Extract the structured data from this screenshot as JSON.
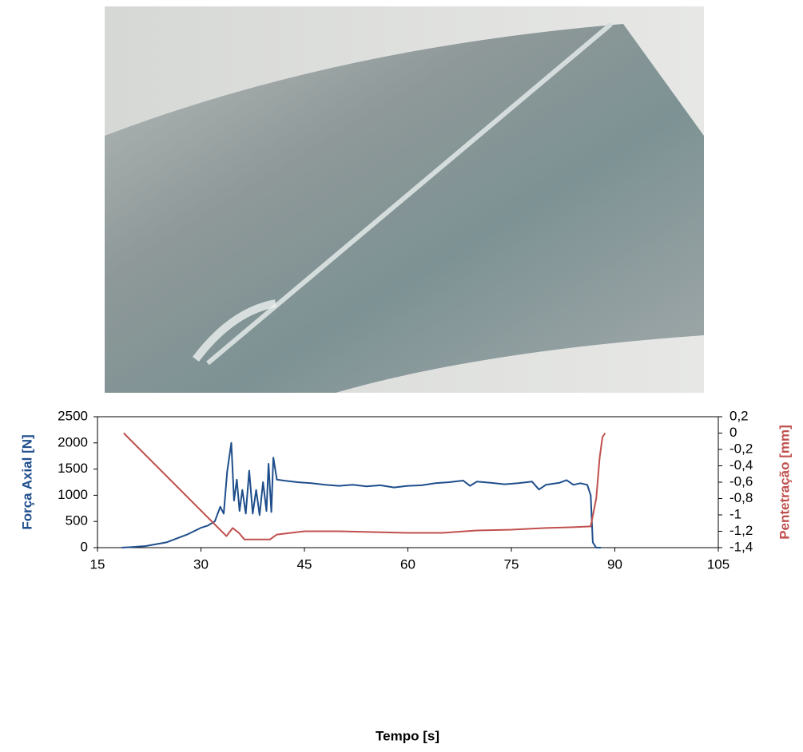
{
  "chart_data": {
    "type": "line",
    "xlabel": "Tempo [s]",
    "ylabel": "Força Axial [N]",
    "y2label": "Pentetração [mm]",
    "xlim": [
      15,
      105
    ],
    "xticks": [
      15,
      30,
      45,
      60,
      75,
      90,
      105
    ],
    "ylim": [
      0,
      2500
    ],
    "yticks": [
      0,
      500,
      1000,
      1500,
      2000,
      2500
    ],
    "y2lim": [
      -1.4,
      0.2
    ],
    "y2ticks": [
      {
        "value": -1.4,
        "label": "-1,4"
      },
      {
        "value": -1.2,
        "label": "-1,2"
      },
      -1,
      {
        "value": -0.8,
        "label": "-0,8"
      },
      {
        "value": -0.6,
        "label": "-0,6"
      },
      {
        "value": -0.4,
        "label": "-0,4"
      },
      {
        "value": -0.2,
        "label": "-0,2"
      },
      0,
      {
        "value": 0.2,
        "label": "0,2"
      }
    ],
    "series": [
      {
        "name": "Força Axial",
        "color": "#1f4e8c",
        "axis": "y",
        "x": [
          18.5,
          20,
          22,
          25,
          28,
          30,
          31,
          32,
          32.8,
          33.3,
          33.8,
          34.4,
          34.8,
          35.2,
          35.6,
          36,
          36.5,
          37,
          37.5,
          38,
          38.5,
          39,
          39.5,
          39.8,
          40.2,
          40.5,
          41,
          42,
          44,
          46,
          48,
          50,
          52,
          54,
          56,
          58,
          60,
          62,
          64,
          66,
          68,
          69,
          70,
          72,
          74,
          76,
          78,
          79,
          80,
          82,
          83,
          84,
          85,
          86,
          86.5,
          86.8,
          87.3,
          88
        ],
        "values": [
          0,
          10,
          30,
          100,
          250,
          380,
          420,
          500,
          780,
          650,
          1450,
          2000,
          900,
          1300,
          700,
          1100,
          650,
          1470,
          650,
          1100,
          620,
          1250,
          700,
          1600,
          680,
          1720,
          1300,
          1280,
          1250,
          1230,
          1200,
          1180,
          1200,
          1170,
          1190,
          1150,
          1180,
          1190,
          1230,
          1250,
          1280,
          1180,
          1260,
          1240,
          1210,
          1230,
          1260,
          1110,
          1200,
          1240,
          1290,
          1200,
          1230,
          1200,
          1000,
          100,
          0,
          0
        ]
      },
      {
        "name": "Pentetração",
        "color": "#c0504d",
        "axis": "y2",
        "x": [
          18.8,
          33.7,
          34.6,
          35.5,
          36.3,
          40,
          41,
          45,
          50,
          55,
          60,
          65,
          70,
          75,
          80,
          84,
          86.5,
          87.3,
          87.8,
          88.2,
          88.6
        ],
        "values": [
          0,
          -1.26,
          -1.16,
          -1.22,
          -1.3,
          -1.3,
          -1.24,
          -1.2,
          -1.2,
          -1.21,
          -1.22,
          -1.22,
          -1.19,
          -1.18,
          -1.16,
          -1.15,
          -1.14,
          -0.8,
          -0.3,
          -0.05,
          0
        ]
      }
    ]
  }
}
